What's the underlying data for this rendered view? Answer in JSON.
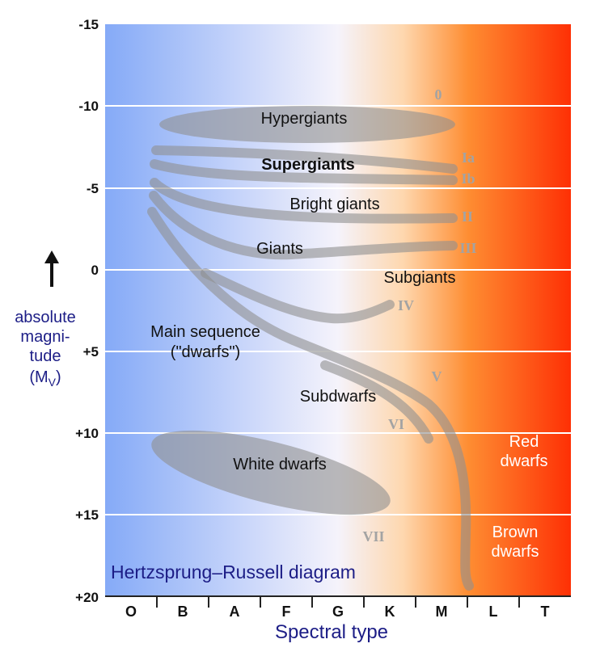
{
  "diagram": {
    "title": "Hertzsprung–Russell diagram",
    "x_axis": {
      "label": "Spectral type",
      "ticks": [
        "O",
        "B",
        "A",
        "F",
        "G",
        "K",
        "M",
        "L",
        "T"
      ]
    },
    "y_axis": {
      "label_lines": [
        "absolute",
        "magni-",
        "tude"
      ],
      "label_symbol": "(M",
      "label_subscript": "V",
      "label_close": ")",
      "arrow_icon": "up-arrow-icon",
      "ticks": [
        "-15",
        "-10",
        "-5",
        "0",
        "+5",
        "+10",
        "+15",
        "+20"
      ]
    },
    "regions": {
      "hypergiants": "Hypergiants",
      "supergiants": "Supergiants",
      "bright_giants": "Bright giants",
      "giants": "Giants",
      "subgiants": "Subgiants",
      "main_sequence_1": "Main sequence",
      "main_sequence_2": "(\"dwarfs\")",
      "subdwarfs": "Subdwarfs",
      "white_dwarfs": "White dwarfs",
      "red_dwarfs_1": "Red",
      "red_dwarfs_2": "dwarfs",
      "brown_dwarfs_1": "Brown",
      "brown_dwarfs_2": "dwarfs"
    },
    "luminosity_classes": {
      "c0": "0",
      "cIa": "Ia",
      "cIb": "Ib",
      "cII": "II",
      "cIII": "III",
      "cIV": "IV",
      "cV": "V",
      "cVI": "VI",
      "cVII": "VII"
    },
    "colors": {
      "hot_blue": "#85aaf7",
      "mid_white": "#f5f3fb",
      "warm_peach": "#fed7ae",
      "orange": "#fe8d32",
      "cool_red": "#fe3005",
      "band_gray": "#8f8f8f",
      "title_blue": "#1c1d86"
    }
  }
}
